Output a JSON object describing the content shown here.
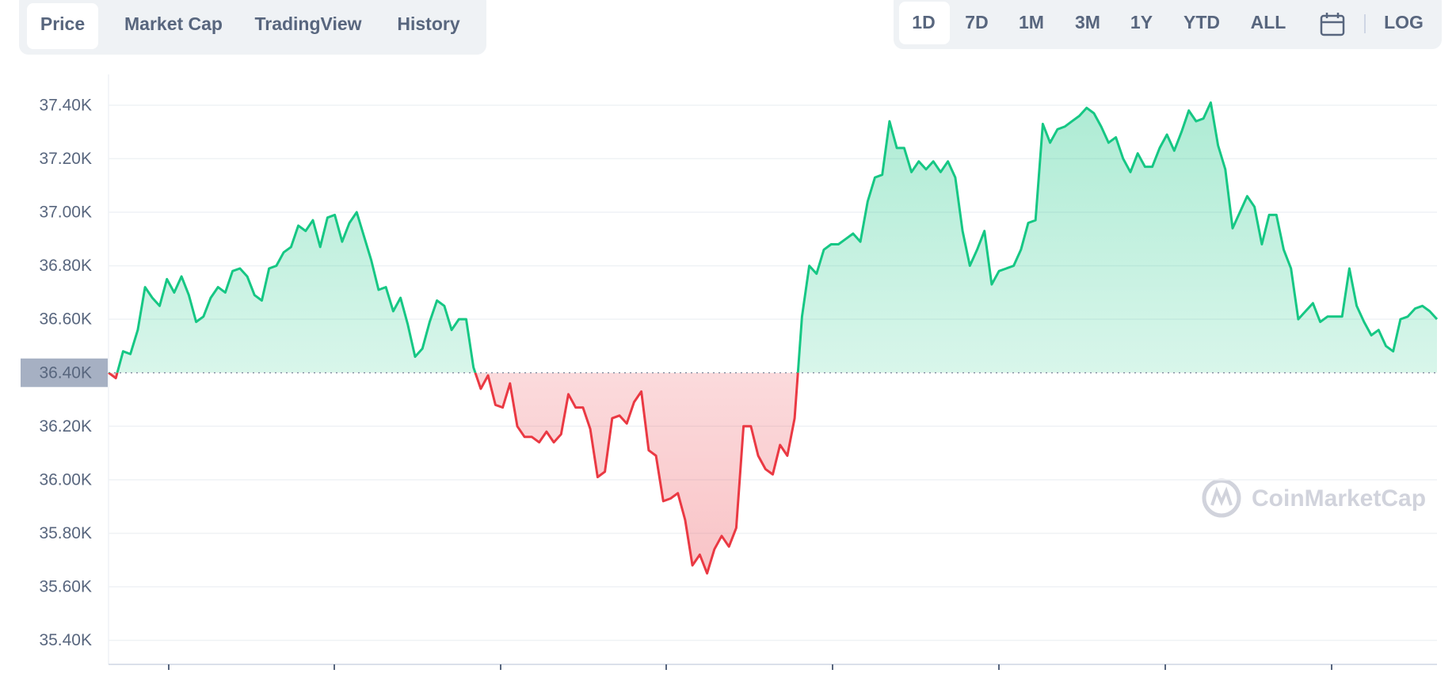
{
  "tabs": [
    "Price",
    "Market Cap",
    "TradingView",
    "History"
  ],
  "ranges": [
    "1D",
    "7D",
    "1M",
    "3M",
    "1Y",
    "YTD",
    "ALL"
  ],
  "log_button": "LOG",
  "watermark": "CoinMarketCap",
  "chart_data": {
    "type": "line",
    "up_color": "#16c784",
    "down_color": "#ea3943",
    "baseline": 36400,
    "grid": true,
    "ylim": [
      35310,
      37515
    ],
    "yticks": [
      {
        "value": 35400,
        "label": "35.40K"
      },
      {
        "value": 35600,
        "label": "35.60K"
      },
      {
        "value": 35800,
        "label": "35.80K"
      },
      {
        "value": 36000,
        "label": "36.00K"
      },
      {
        "value": 36200,
        "label": "36.20K"
      },
      {
        "value": 36400,
        "label": "36.40K"
      },
      {
        "value": 36600,
        "label": "36.60K"
      },
      {
        "value": 36800,
        "label": "36.80K"
      },
      {
        "value": 37000,
        "label": "37.00K"
      },
      {
        "value": 37200,
        "label": "37.20K"
      },
      {
        "value": 37400,
        "label": "37.40K"
      }
    ],
    "values": [
      36400,
      36380,
      36480,
      36470,
      36560,
      36720,
      36680,
      36650,
      36750,
      36700,
      36760,
      36690,
      36590,
      36610,
      36680,
      36720,
      36700,
      36780,
      36790,
      36760,
      36690,
      36670,
      36790,
      36800,
      36850,
      36870,
      36950,
      36930,
      36970,
      36870,
      36980,
      36990,
      36890,
      36960,
      37000,
      36910,
      36820,
      36710,
      36720,
      36630,
      36680,
      36580,
      36460,
      36490,
      36590,
      36670,
      36650,
      36560,
      36600,
      36600,
      36420,
      36340,
      36390,
      36280,
      36270,
      36360,
      36200,
      36160,
      36160,
      36140,
      36180,
      36140,
      36170,
      36320,
      36270,
      36270,
      36190,
      36010,
      36030,
      36230,
      36240,
      36210,
      36290,
      36330,
      36110,
      36090,
      35920,
      35930,
      35950,
      35850,
      35680,
      35720,
      35650,
      35740,
      35790,
      35750,
      35820,
      36200,
      36200,
      36090,
      36040,
      36020,
      36130,
      36090,
      36230,
      36610,
      36800,
      36770,
      36860,
      36880,
      36880,
      36900,
      36920,
      36890,
      37040,
      37130,
      37140,
      37340,
      37240,
      37240,
      37150,
      37190,
      37160,
      37190,
      37150,
      37190,
      37130,
      36930,
      36800,
      36860,
      36930,
      36730,
      36780,
      36790,
      36800,
      36860,
      36960,
      36970,
      37330,
      37260,
      37310,
      37320,
      37340,
      37360,
      37390,
      37370,
      37320,
      37260,
      37280,
      37200,
      37150,
      37220,
      37170,
      37170,
      37240,
      37290,
      37230,
      37300,
      37380,
      37340,
      37350,
      37410,
      37250,
      37160,
      36940,
      37000,
      37060,
      37020,
      36880,
      36990,
      36990,
      36860,
      36790,
      36600,
      36630,
      36660,
      36590,
      36610,
      36610,
      36610,
      36790,
      36650,
      36590,
      36540,
      36560,
      36500,
      36480,
      36600,
      36610,
      36640,
      36650,
      36630,
      36600
    ]
  }
}
